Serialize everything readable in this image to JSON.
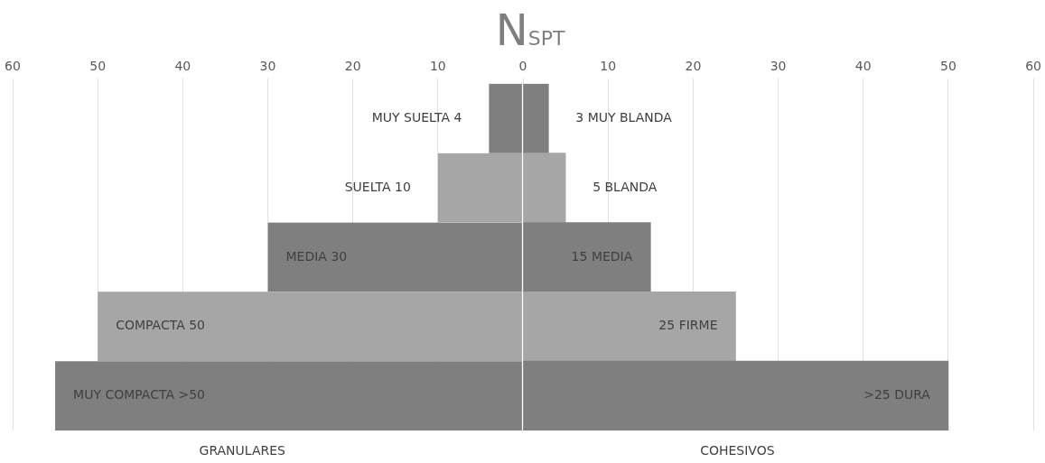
{
  "chart_data": {
    "type": "bar",
    "orientation": "horizontal",
    "stacked": true,
    "title": "N$_{SPT}$",
    "categories": [
      null,
      null,
      null,
      null,
      null
    ],
    "series": [
      {
        "colors": [
          "#7f7f7f",
          "#a6a6a6",
          "#7f7f7f",
          "#a6a6a6",
          "#7f7f7f"
        ],
        "values": [
          -4,
          -10,
          -30,
          -50,
          -55
        ],
        "value_labels": [
          "MUY SUELTA 4",
          "SUELTA 10",
          "MEDIA 30",
          "COMPACTA 50",
          "MUY COMPACTA >50"
        ]
      },
      {
        "colors": [
          "#7f7f7f",
          "#a6a6a6",
          "#7f7f7f",
          "#a6a6a6",
          "#7f7f7f"
        ],
        "values": [
          3,
          5,
          15,
          25,
          50
        ],
        "value_labels": [
          "3 MUY BLANDA",
          "5 BLANDA",
          "15 MEDIA",
          "25 FIRME",
          ">25 DURA"
        ]
      }
    ],
    "xlim": [
      -60,
      60
    ],
    "xticks": [
      {
        "value": -60,
        "label": "60"
      },
      {
        "value": -50,
        "label": "50"
      },
      {
        "value": -40,
        "label": "40"
      },
      {
        "value": -30,
        "label": "30"
      },
      {
        "value": -20,
        "label": "20"
      },
      {
        "value": -10,
        "label": "10"
      },
      0,
      10,
      20,
      30,
      40,
      50,
      60
    ],
    "grid": "x",
    "legend": false,
    "annotations": [
      "GRANULARES",
      "COHESIVOS"
    ]
  }
}
